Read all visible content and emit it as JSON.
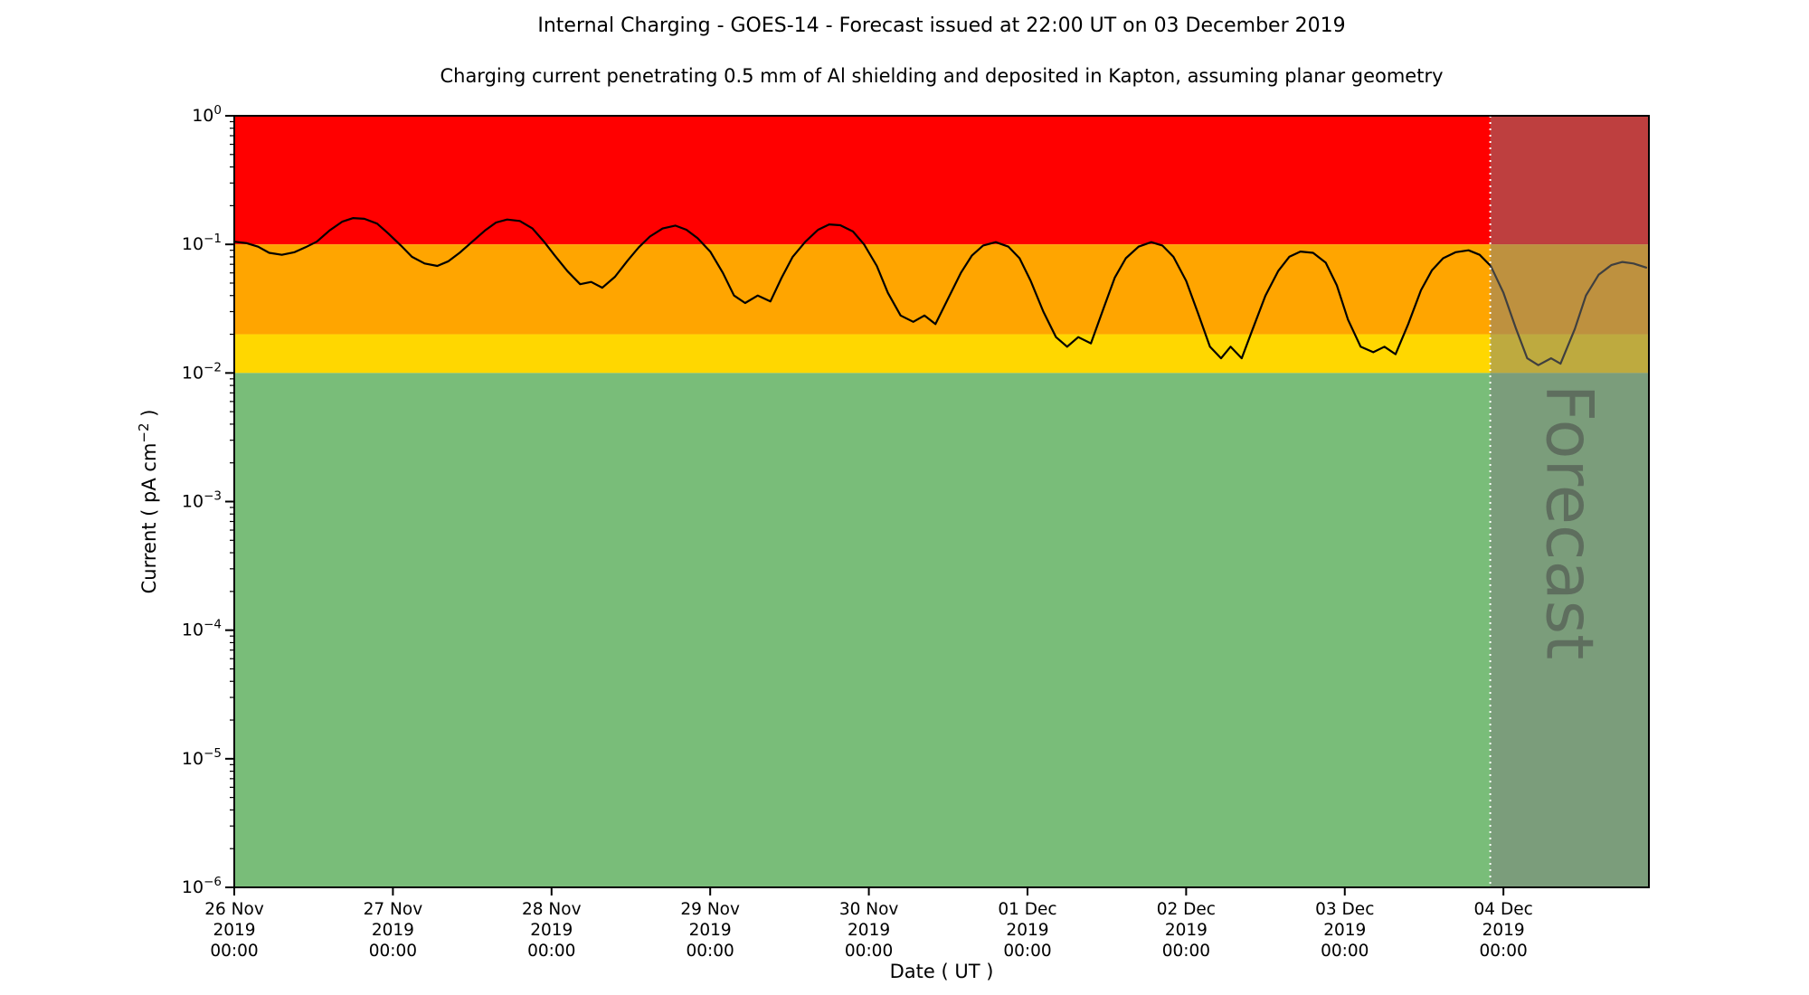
{
  "title": "Internal Charging - GOES-14 - Forecast issued at 22:00 UT on 03 December 2019",
  "subtitle": "Charging current penetrating 0.5 mm of Al shielding and deposited in Kapton, assuming planar geometry",
  "chart_data": {
    "type": "line",
    "title": "Internal Charging - GOES-14 - Forecast issued at 22:00 UT on 03 December 2019",
    "subtitle": "Charging current penetrating 0.5 mm of Al shielding and deposited in Kapton, assuming planar geometry",
    "xlabel": "Date ( UT )",
    "ylabel": "Current ( pA cm⁻² )",
    "ylabel_main": "Current ( pA cm",
    "ylabel_sup": "−2",
    "ylabel_end": " )",
    "x_unit": "days since 26 Nov 2019 00:00 UT",
    "x_range": [
      0,
      8.917
    ],
    "y_log_range": [
      -6,
      0
    ],
    "grid": "off",
    "y_tick_exponents": [
      0,
      -1,
      -2,
      -3,
      -4,
      -5,
      -6
    ],
    "x_ticks": [
      {
        "day": 0,
        "label": [
          "26 Nov",
          "2019",
          "00:00"
        ]
      },
      {
        "day": 1,
        "label": [
          "27 Nov",
          "2019",
          "00:00"
        ]
      },
      {
        "day": 2,
        "label": [
          "28 Nov",
          "2019",
          "00:00"
        ]
      },
      {
        "day": 3,
        "label": [
          "29 Nov",
          "2019",
          "00:00"
        ]
      },
      {
        "day": 4,
        "label": [
          "30 Nov",
          "2019",
          "00:00"
        ]
      },
      {
        "day": 5,
        "label": [
          "01 Dec",
          "2019",
          "00:00"
        ]
      },
      {
        "day": 6,
        "label": [
          "02 Dec",
          "2019",
          "00:00"
        ]
      },
      {
        "day": 7,
        "label": [
          "03 Dec",
          "2019",
          "00:00"
        ]
      },
      {
        "day": 8,
        "label": [
          "04 Dec",
          "2019",
          "00:00"
        ]
      }
    ],
    "bands": [
      {
        "name": "red-alert",
        "from": 0.1,
        "to": 1.0,
        "color": "#ff0000"
      },
      {
        "name": "amber",
        "from": 0.02,
        "to": 0.1,
        "color": "#ffa500"
      },
      {
        "name": "yellow",
        "from": 0.01,
        "to": 0.02,
        "color": "#ffd700"
      },
      {
        "name": "green",
        "from": 1e-06,
        "to": 0.01,
        "color": "#79bd79"
      }
    ],
    "forecast": {
      "start_day": 7.917,
      "label": "Forecast",
      "overlay_color": "#7d7d7d",
      "overlay_opacity": 0.5,
      "divider_color": "#ffffff",
      "label_color": "#474747",
      "label_opacity": 0.55
    },
    "series": [
      {
        "name": "charging-current",
        "color": "#000000",
        "points": [
          [
            0.0,
            0.105
          ],
          [
            0.08,
            0.102
          ],
          [
            0.15,
            0.096
          ],
          [
            0.22,
            0.086
          ],
          [
            0.3,
            0.083
          ],
          [
            0.38,
            0.087
          ],
          [
            0.45,
            0.095
          ],
          [
            0.52,
            0.105
          ],
          [
            0.6,
            0.128
          ],
          [
            0.68,
            0.15
          ],
          [
            0.75,
            0.16
          ],
          [
            0.82,
            0.158
          ],
          [
            0.9,
            0.145
          ],
          [
            0.97,
            0.122
          ],
          [
            1.05,
            0.098
          ],
          [
            1.12,
            0.08
          ],
          [
            1.2,
            0.071
          ],
          [
            1.28,
            0.068
          ],
          [
            1.35,
            0.074
          ],
          [
            1.42,
            0.086
          ],
          [
            1.5,
            0.105
          ],
          [
            1.58,
            0.128
          ],
          [
            1.65,
            0.148
          ],
          [
            1.72,
            0.156
          ],
          [
            1.8,
            0.152
          ],
          [
            1.88,
            0.133
          ],
          [
            1.95,
            0.106
          ],
          [
            2.02,
            0.082
          ],
          [
            2.1,
            0.062
          ],
          [
            2.18,
            0.049
          ],
          [
            2.25,
            0.051
          ],
          [
            2.32,
            0.046
          ],
          [
            2.4,
            0.056
          ],
          [
            2.48,
            0.075
          ],
          [
            2.55,
            0.095
          ],
          [
            2.62,
            0.115
          ],
          [
            2.7,
            0.133
          ],
          [
            2.78,
            0.14
          ],
          [
            2.85,
            0.13
          ],
          [
            2.92,
            0.112
          ],
          [
            3.0,
            0.088
          ],
          [
            3.08,
            0.06
          ],
          [
            3.15,
            0.04
          ],
          [
            3.22,
            0.035
          ],
          [
            3.3,
            0.04
          ],
          [
            3.38,
            0.036
          ],
          [
            3.45,
            0.055
          ],
          [
            3.52,
            0.08
          ],
          [
            3.6,
            0.105
          ],
          [
            3.68,
            0.13
          ],
          [
            3.75,
            0.143
          ],
          [
            3.82,
            0.141
          ],
          [
            3.9,
            0.126
          ],
          [
            3.97,
            0.1
          ],
          [
            4.05,
            0.068
          ],
          [
            4.12,
            0.042
          ],
          [
            4.2,
            0.028
          ],
          [
            4.28,
            0.025
          ],
          [
            4.35,
            0.028
          ],
          [
            4.42,
            0.024
          ],
          [
            4.5,
            0.038
          ],
          [
            4.58,
            0.06
          ],
          [
            4.65,
            0.082
          ],
          [
            4.72,
            0.098
          ],
          [
            4.8,
            0.104
          ],
          [
            4.88,
            0.096
          ],
          [
            4.95,
            0.078
          ],
          [
            5.02,
            0.052
          ],
          [
            5.1,
            0.03
          ],
          [
            5.18,
            0.019
          ],
          [
            5.25,
            0.016
          ],
          [
            5.32,
            0.019
          ],
          [
            5.4,
            0.017
          ],
          [
            5.48,
            0.032
          ],
          [
            5.55,
            0.055
          ],
          [
            5.62,
            0.078
          ],
          [
            5.7,
            0.096
          ],
          [
            5.78,
            0.104
          ],
          [
            5.85,
            0.098
          ],
          [
            5.92,
            0.08
          ],
          [
            6.0,
            0.052
          ],
          [
            6.08,
            0.028
          ],
          [
            6.15,
            0.016
          ],
          [
            6.22,
            0.013
          ],
          [
            6.28,
            0.016
          ],
          [
            6.35,
            0.013
          ],
          [
            6.42,
            0.022
          ],
          [
            6.5,
            0.04
          ],
          [
            6.58,
            0.062
          ],
          [
            6.65,
            0.08
          ],
          [
            6.72,
            0.088
          ],
          [
            6.8,
            0.086
          ],
          [
            6.88,
            0.072
          ],
          [
            6.95,
            0.048
          ],
          [
            7.02,
            0.026
          ],
          [
            7.1,
            0.016
          ],
          [
            7.18,
            0.0145
          ],
          [
            7.25,
            0.016
          ],
          [
            7.32,
            0.014
          ],
          [
            7.4,
            0.024
          ],
          [
            7.48,
            0.044
          ],
          [
            7.55,
            0.063
          ],
          [
            7.62,
            0.078
          ],
          [
            7.7,
            0.087
          ],
          [
            7.78,
            0.09
          ],
          [
            7.85,
            0.083
          ],
          [
            7.92,
            0.068
          ],
          [
            8.0,
            0.042
          ],
          [
            8.08,
            0.022
          ],
          [
            8.15,
            0.013
          ],
          [
            8.22,
            0.0115
          ],
          [
            8.3,
            0.013
          ],
          [
            8.36,
            0.0118
          ],
          [
            8.45,
            0.022
          ],
          [
            8.52,
            0.04
          ],
          [
            8.6,
            0.058
          ],
          [
            8.68,
            0.069
          ],
          [
            8.75,
            0.073
          ],
          [
            8.82,
            0.071
          ],
          [
            8.9,
            0.066
          ]
        ]
      }
    ]
  }
}
